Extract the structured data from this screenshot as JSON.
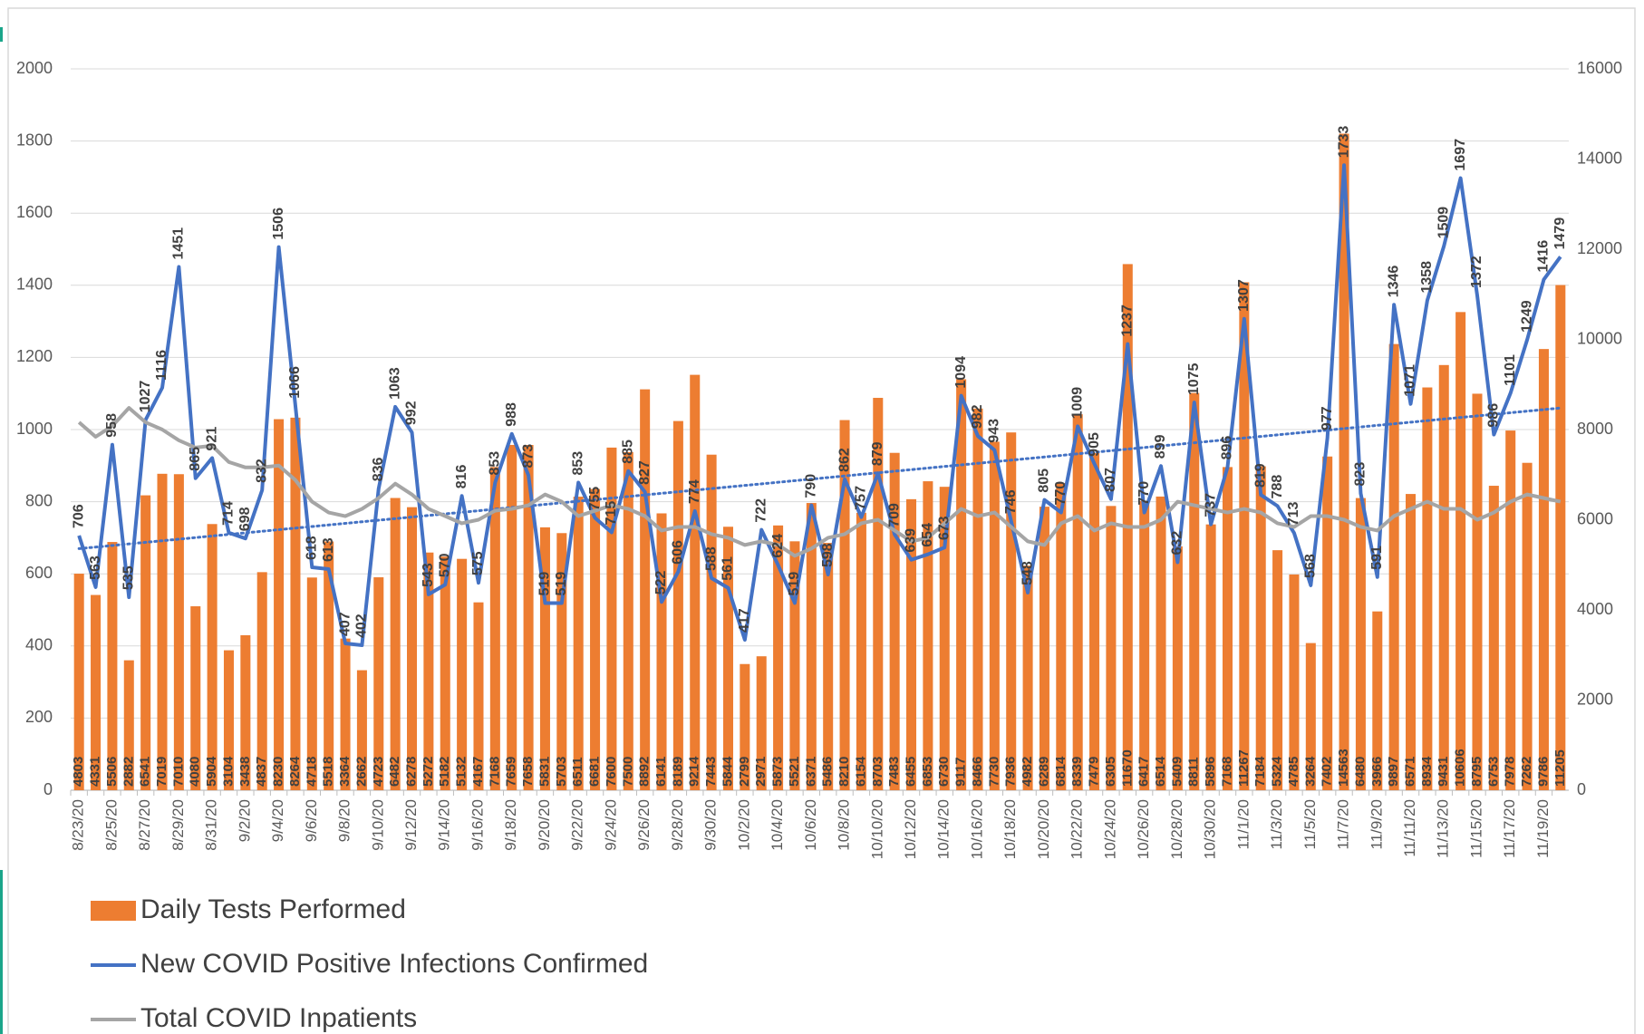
{
  "chart_data": {
    "type": "combo",
    "categories": [
      "8/23/20",
      null,
      "8/25/20",
      null,
      "8/27/20",
      null,
      "8/29/20",
      null,
      "8/31/20",
      null,
      "9/2/20",
      null,
      "9/4/20",
      null,
      "9/6/20",
      null,
      "9/8/20",
      null,
      "9/10/20",
      null,
      "9/12/20",
      null,
      "9/14/20",
      null,
      "9/16/20",
      null,
      "9/18/20",
      null,
      "9/20/20",
      null,
      "9/22/20",
      null,
      "9/24/20",
      null,
      "9/26/20",
      null,
      "9/28/20",
      null,
      "9/30/20",
      null,
      "10/2/20",
      null,
      "10/4/20",
      null,
      "10/6/20",
      null,
      "10/8/20",
      null,
      "10/10/20",
      null,
      "10/12/20",
      null,
      "10/14/20",
      null,
      "10/16/20",
      null,
      "10/18/20",
      null,
      "10/20/20",
      null,
      "10/22/20",
      null,
      "10/24/20",
      null,
      "10/26/20",
      null,
      "10/28/20",
      null,
      "10/30/20",
      null,
      "11/1/20",
      null,
      "11/3/20",
      null,
      "11/5/20",
      null,
      "11/7/20",
      null,
      "11/9/20",
      null,
      "11/11/20",
      null,
      "11/13/20",
      null,
      "11/15/20",
      null,
      "11/17/20",
      null,
      "11/19/20",
      null
    ],
    "series": [
      {
        "name": "Daily Tests Performed",
        "type": "bar",
        "axis": "y2",
        "color": "#ed7d31",
        "data_labels": true,
        "values": [
          4803,
          4331,
          5506,
          2882,
          6541,
          7019,
          7010,
          4080,
          5904,
          3104,
          3438,
          4837,
          8230,
          8264,
          4718,
          5518,
          3364,
          2662,
          4723,
          6482,
          6278,
          5272,
          5182,
          5132,
          4167,
          7168,
          7659,
          7658,
          5831,
          5703,
          6511,
          6681,
          7600,
          7500,
          8892,
          6141,
          8189,
          9214,
          7443,
          5844,
          2799,
          2971,
          5873,
          5521,
          6371,
          5486,
          8210,
          6154,
          8703,
          7483,
          6455,
          6853,
          6730,
          9117,
          8466,
          7730,
          7936,
          4982,
          6289,
          6814,
          8339,
          7479,
          6305,
          11670,
          6417,
          6514,
          5409,
          8811,
          5896,
          7168,
          11267,
          7184,
          5324,
          4785,
          3264,
          7402,
          14563,
          6480,
          3966,
          9897,
          6571,
          8934,
          9431,
          10606,
          8795,
          6753,
          7978,
          7262,
          9786,
          11205
        ]
      },
      {
        "name": "New COVID Positive Infections Confirmed",
        "type": "line",
        "axis": "y",
        "color": "#4472c4",
        "data_labels": true,
        "trendline": "linear",
        "values": [
          706,
          563,
          958,
          535,
          1027,
          1116,
          1451,
          865,
          921,
          714,
          698,
          832,
          1506,
          1066,
          618,
          613,
          407,
          402,
          836,
          1063,
          992,
          543,
          570,
          816,
          575,
          853,
          988,
          873,
          519,
          519,
          853,
          755,
          715,
          885,
          827,
          522,
          606,
          774,
          588,
          561,
          417,
          722,
          624,
          519,
          790,
          598,
          862,
          757,
          879,
          709,
          639,
          654,
          673,
          1094,
          982,
          943,
          746,
          548,
          805,
          770,
          1009,
          905,
          807,
          1237,
          770,
          899,
          632,
          1075,
          737,
          896,
          1307,
          819,
          788,
          713,
          568,
          977,
          1733,
          823,
          591,
          1346,
          1071,
          1358,
          1509,
          1697,
          1372,
          986,
          1101,
          1249,
          1416,
          1479
        ]
      },
      {
        "name": "Total COVID Inpatients",
        "type": "line",
        "axis": "y",
        "color": "#a5a5a5",
        "data_labels": false,
        "values": [
          1020,
          980,
          1010,
          1060,
          1020,
          1000,
          970,
          950,
          955,
          910,
          895,
          895,
          900,
          860,
          800,
          770,
          760,
          780,
          810,
          850,
          820,
          780,
          760,
          740,
          750,
          775,
          780,
          790,
          820,
          800,
          760,
          775,
          790,
          780,
          760,
          720,
          730,
          730,
          710,
          700,
          680,
          690,
          680,
          650,
          670,
          700,
          710,
          740,
          750,
          720,
          690,
          700,
          740,
          780,
          760,
          770,
          730,
          690,
          680,
          740,
          760,
          720,
          740,
          730,
          730,
          750,
          800,
          790,
          780,
          770,
          780,
          770,
          740,
          730,
          760,
          760,
          750,
          730,
          720,
          760,
          780,
          800,
          780,
          780,
          750,
          770,
          800,
          820,
          810,
          800
        ]
      }
    ],
    "ylim": [
      0,
      2000
    ],
    "yticks": [
      0,
      200,
      400,
      600,
      800,
      1000,
      1200,
      1400,
      1600,
      1800,
      2000
    ],
    "y2lim": [
      0,
      16000
    ],
    "y2ticks": [
      0,
      2000,
      4000,
      6000,
      8000,
      10000,
      12000,
      14000,
      16000
    ],
    "grid": true,
    "legend": "bottom-left"
  }
}
